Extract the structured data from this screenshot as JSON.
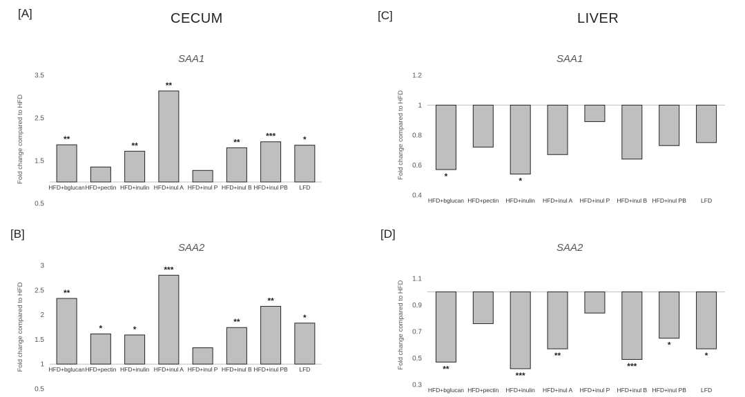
{
  "panels": {
    "A": "[A]",
    "B": "[B]",
    "C": "[C]",
    "D": "[D]"
  },
  "sections": {
    "cecum": "CECUM",
    "liver": "LIVER"
  },
  "colors": {
    "bar_fill": "#bfbfbf",
    "bar_stroke": "#222222",
    "baseline": "#bfbfbf",
    "text": "#555555"
  },
  "chart_data": [
    {
      "id": "A",
      "type": "bar",
      "title": "SAA1",
      "ylabel": "Fold change compared to HFD",
      "ylim": [
        0.5,
        3.5
      ],
      "yticks": [
        "0.5",
        "1.5",
        "2.5",
        "3.5"
      ],
      "baseline": 1,
      "baseline_line": true,
      "category_labels_position": "at-baseline",
      "categories": [
        "HFD+bglucan",
        "HFD+pectin",
        "HFD+inulin",
        "HFD+inul A",
        "HFD+inul P",
        "HFD+inul B",
        "HFD+inul PB",
        "LFD"
      ],
      "values": [
        1.87,
        1.35,
        1.72,
        3.13,
        1.27,
        1.8,
        1.94,
        1.86
      ],
      "significance": [
        "**",
        "",
        "**",
        "**",
        "",
        "**",
        "***",
        "*"
      ]
    },
    {
      "id": "B",
      "type": "bar",
      "title": "SAA2",
      "ylabel": "Fold change compared to HFD",
      "ylim": [
        0.5,
        3
      ],
      "yticks": [
        "0.5",
        "1",
        "1.5",
        "2",
        "2.5",
        "3"
      ],
      "baseline": 1,
      "baseline_line": true,
      "category_labels_position": "at-baseline",
      "categories": [
        "HFD+bglucan",
        "HFD+pectin",
        "HFD+inulin",
        "HFD+inul A",
        "HFD+inul P",
        "HFD+inul B",
        "HFD+inul PB",
        "LFD"
      ],
      "values": [
        2.33,
        1.61,
        1.59,
        2.8,
        1.33,
        1.74,
        2.17,
        1.83
      ],
      "significance": [
        "**",
        "*",
        "*",
        "***",
        "",
        "**",
        "**",
        "*"
      ]
    },
    {
      "id": "C",
      "type": "bar",
      "title": "SAA1",
      "ylabel": "Fold change compared to HFD",
      "ylim": [
        0.4,
        1.2
      ],
      "yticks": [
        "0.4",
        "0.6",
        "0.8",
        "1",
        "1.2"
      ],
      "baseline": 1,
      "baseline_line": true,
      "category_labels_position": "bottom",
      "categories": [
        "HFD+bglucan",
        "HFD+pectin",
        "HFD+inulin",
        "HFD+inul A",
        "HFD+inul P",
        "HFD+inul B",
        "HFD+inul PB",
        "LFD"
      ],
      "values": [
        0.57,
        0.72,
        0.54,
        0.67,
        0.89,
        0.64,
        0.73,
        0.75
      ],
      "significance": [
        "*",
        "",
        "*",
        "",
        "",
        "",
        "",
        ""
      ]
    },
    {
      "id": "D",
      "type": "bar",
      "title": "SAA2",
      "ylabel": "Fold change compared to HFD",
      "ylim": [
        0.3,
        1.2
      ],
      "yticks": [
        "0.3",
        "0.5",
        "0.7",
        "0.9",
        "1.1"
      ],
      "baseline": 1,
      "baseline_line": true,
      "category_labels_position": "bottom",
      "categories": [
        "HFD+bglucan",
        "HFD+pectin",
        "HFD+inulin",
        "HFD+inul A",
        "HFD+inul P",
        "HFD+inul B",
        "HFD+inul PB",
        "LFD"
      ],
      "values": [
        0.47,
        0.76,
        0.42,
        0.57,
        0.84,
        0.49,
        0.65,
        0.57
      ],
      "significance": [
        "**",
        "",
        "***",
        "**",
        "",
        "***",
        "*",
        "*"
      ]
    }
  ]
}
